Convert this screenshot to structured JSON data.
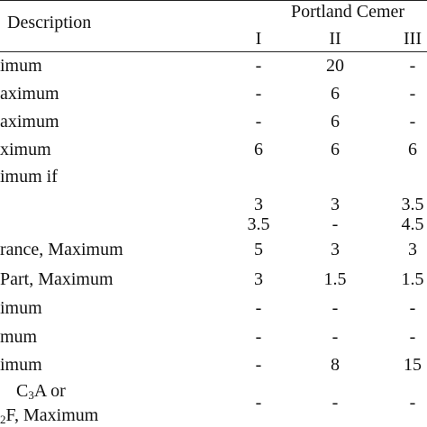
{
  "header": {
    "description": "Description",
    "group": "Portland Cemer",
    "types": [
      "I",
      "II",
      "III"
    ]
  },
  "rows": [
    {
      "label": "imum",
      "values": [
        "-",
        "20",
        "-"
      ]
    },
    {
      "label": "aximum",
      "values": [
        "-",
        "6",
        "-"
      ]
    },
    {
      "label": "aximum",
      "values": [
        "-",
        "6",
        "-"
      ]
    },
    {
      "label": "ximum",
      "values": [
        "6",
        "6",
        "6"
      ]
    },
    {
      "label": "imum if",
      "values": [
        "",
        "",
        ""
      ]
    },
    {
      "label": "",
      "values": [
        "3",
        "3",
        "3.5"
      ]
    },
    {
      "label": "",
      "values": [
        "3.5",
        "-",
        "4.5"
      ]
    },
    {
      "label": "rance, Maximum",
      "values": [
        "5",
        "3",
        "3"
      ]
    },
    {
      "label": "Part, Maximum",
      "values": [
        "3",
        "1.5",
        "1.5"
      ]
    },
    {
      "label": "imum",
      "values": [
        "-",
        "-",
        "-"
      ]
    },
    {
      "label": "mum",
      "values": [
        "-",
        "-",
        "-"
      ]
    },
    {
      "label": "imum",
      "values": [
        "-",
        "8",
        "15"
      ]
    },
    {
      "label_pre": "C",
      "label_sub": "3",
      "label_post": "A or",
      "values": [
        "",
        "",
        ""
      ]
    },
    {
      "label_sub": "2",
      "label_post": "F, Maximum",
      "values": [
        "-",
        "-",
        "-"
      ]
    }
  ]
}
